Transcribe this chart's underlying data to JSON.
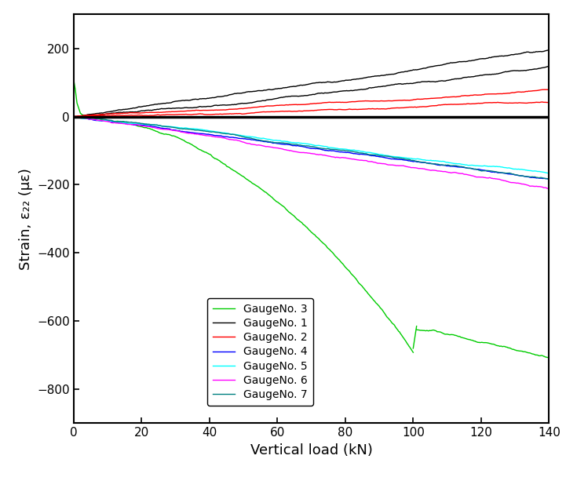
{
  "title": "",
  "xlabel": "Vertical load (kN)",
  "ylabel": "Strain, ε₂₂ (με)",
  "xlim": [
    0,
    140
  ],
  "ylim": [
    -900,
    300
  ],
  "yticks": [
    -800,
    -600,
    -400,
    -200,
    0,
    200
  ],
  "xticks": [
    0,
    20,
    40,
    60,
    80,
    100,
    120,
    140
  ],
  "legend_labels_display": [
    "GaugeNo. 1",
    "GaugeNo. 2",
    "GaugeNo. 3",
    "GaugeNo. 4",
    "GaugeNo. 5",
    "GaugeNo. 6",
    "GaugeNo. 7"
  ],
  "colors": [
    "black",
    "red",
    "#00cc00",
    "blue",
    "cyan",
    "magenta",
    "teal"
  ],
  "linewidth": 1.0
}
